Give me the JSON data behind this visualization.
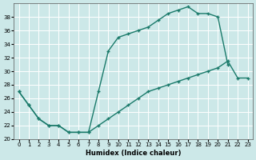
{
  "xlabel": "Humidex (Indice chaleur)",
  "bg_color": "#cce8e8",
  "grid_color": "#ffffff",
  "line_color": "#1a7a6a",
  "curve_upper_x": [
    0,
    1,
    2,
    3,
    4,
    5,
    6,
    7,
    8,
    9,
    10,
    11,
    12,
    13,
    14,
    15,
    16,
    17,
    18,
    19,
    20,
    21
  ],
  "curve_upper_y": [
    27,
    25,
    23,
    22,
    22,
    21,
    21,
    21,
    27,
    33,
    35,
    35.5,
    36,
    36.5,
    37.5,
    38.5,
    39,
    39.5,
    38.5,
    38.5,
    38,
    31
  ],
  "curve_lower_x": [
    0,
    1,
    2,
    3,
    4,
    5,
    6,
    7,
    8,
    9,
    10,
    11,
    12,
    13,
    14,
    15,
    16,
    17,
    18,
    19,
    20,
    21,
    22,
    23
  ],
  "curve_lower_y": [
    27,
    25,
    23,
    22,
    22,
    21,
    21,
    21,
    22,
    23,
    24,
    25,
    26,
    27,
    27.5,
    28,
    28.5,
    29,
    29.5,
    30,
    30.5,
    31.5,
    29,
    29
  ],
  "ylim": [
    20,
    40
  ],
  "xlim": [
    -0.5,
    23.5
  ],
  "yticks": [
    20,
    22,
    24,
    26,
    28,
    30,
    32,
    34,
    36,
    38
  ],
  "xticks": [
    0,
    1,
    2,
    3,
    4,
    5,
    6,
    7,
    8,
    9,
    10,
    11,
    12,
    13,
    14,
    15,
    16,
    17,
    18,
    19,
    20,
    21,
    22,
    23
  ]
}
